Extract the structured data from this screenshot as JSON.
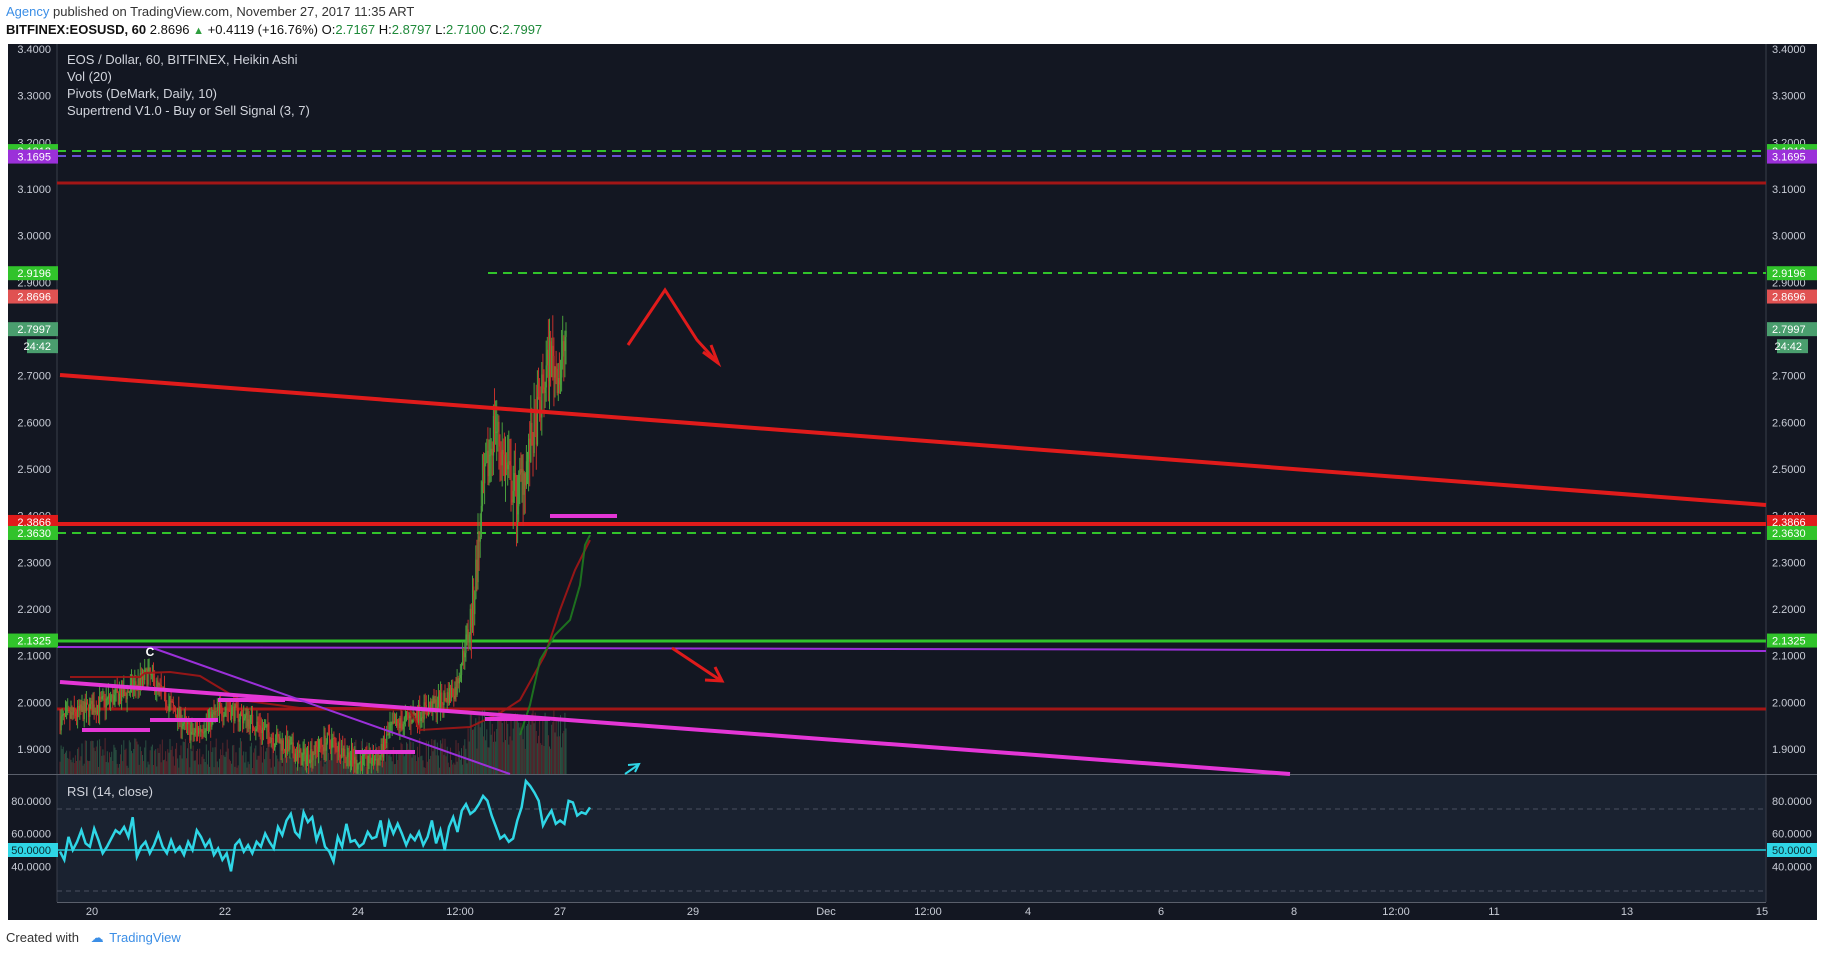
{
  "header": {
    "author": "Agency",
    "published": "published on TradingView.com, November 27, 2017 11:35 ART"
  },
  "symbol_line": {
    "symbol": "BITFINEX:EOSUSD, 60",
    "last": "2.8696",
    "arrow": "▲",
    "change": "+0.4119 (+16.76%)",
    "o_label": "O:",
    "o": "2.7167",
    "h_label": "H:",
    "h": "2.8797",
    "l_label": "L:",
    "l": "2.7100",
    "c_label": "C:",
    "c": "2.7997"
  },
  "legend": {
    "title": "EOS / Dollar, 60, BITFINEX, Heikin Ashi",
    "ind1": "Vol (20)",
    "ind2": "Pivots (DeMark, Daily, 10)",
    "ind3": "Supertrend V1.0 - Buy or Sell Signal (3, 7)",
    "rsi": "RSI (14, close)"
  },
  "footer": {
    "created": "Created with",
    "brand": "TradingView"
  },
  "colors": {
    "background": "#131722",
    "rsi_background": "#1a2230",
    "up": "#4a9e3c",
    "down": "#c4302b",
    "rsi_line": "#2fd6e6",
    "trend_red": "#e01b1b",
    "trend_magenta": "#e436d6",
    "level_green": "#31c32b"
  },
  "chart_data": {
    "type": "candlestick",
    "style": "Heikin Ashi",
    "price_axis": {
      "range": [
        1.84,
        3.4
      ],
      "ticks": [
        "3.4000",
        "3.3000",
        "3.2000",
        "3.1000",
        "3.0000",
        "2.9000",
        "2.8000",
        "2.7000",
        "2.6000",
        "2.5000",
        "2.4000",
        "2.3000",
        "2.2000",
        "2.1000",
        "2.0000",
        "1.9000"
      ]
    },
    "time_axis": {
      "labels": [
        "20",
        "22",
        "24",
        "12:00",
        "27",
        "29",
        "Dec",
        "12:00",
        "4",
        "6",
        "8",
        "12:00",
        "11",
        "13",
        "15"
      ]
    },
    "price_tags": [
      {
        "value": 3.1813,
        "text": "3.1813",
        "color": "#31c32b"
      },
      {
        "value": 3.1695,
        "text": "3.1695",
        "color": "#9b30d9"
      },
      {
        "value": 2.9196,
        "text": "2.9196",
        "color": "#31c32b"
      },
      {
        "value": 2.8696,
        "text": "2.8696",
        "color": "#e05252"
      },
      {
        "value": 2.7997,
        "text": "2.7997",
        "color": "#4a9e6e"
      },
      {
        "value": 2.3866,
        "text": "2.3866",
        "color": "#e01b1b"
      },
      {
        "value": 2.363,
        "text": "2.3630",
        "color": "#31c32b"
      },
      {
        "value": 2.1325,
        "text": "2.1325",
        "color": "#31c32b"
      }
    ],
    "countdown": "24:42",
    "pivot_label": "C",
    "rsi": {
      "ticks": [
        "80.0000",
        "60.0000",
        "40.0000"
      ],
      "highlight": "50.0000",
      "range": [
        20,
        100
      ],
      "bands": [
        75,
        50,
        25
      ],
      "values": [
        49,
        44,
        58,
        50,
        55,
        62,
        54,
        52,
        63,
        56,
        48,
        52,
        57,
        62,
        60,
        64,
        58,
        70,
        46,
        52,
        55,
        48,
        53,
        60,
        52,
        48,
        56,
        49,
        52,
        47,
        55,
        50,
        62,
        58,
        52,
        56,
        47,
        51,
        44,
        48,
        37,
        53,
        56,
        49,
        53,
        48,
        55,
        52,
        60,
        55,
        51,
        64,
        59,
        68,
        72,
        61,
        58,
        73,
        67,
        70,
        56,
        63,
        52,
        49,
        43,
        58,
        52,
        66,
        55,
        56,
        52,
        54,
        61,
        57,
        58,
        68,
        52,
        67,
        60,
        66,
        60,
        53,
        59,
        56,
        61,
        53,
        58,
        68,
        54,
        62,
        50,
        64,
        70,
        61,
        74,
        78,
        72,
        74,
        78,
        83,
        80,
        71,
        64,
        57,
        59,
        55,
        57,
        68,
        76,
        92,
        89,
        85,
        80,
        65,
        70,
        74,
        66,
        68,
        66,
        80,
        79,
        71,
        73,
        72,
        76
      ]
    }
  }
}
